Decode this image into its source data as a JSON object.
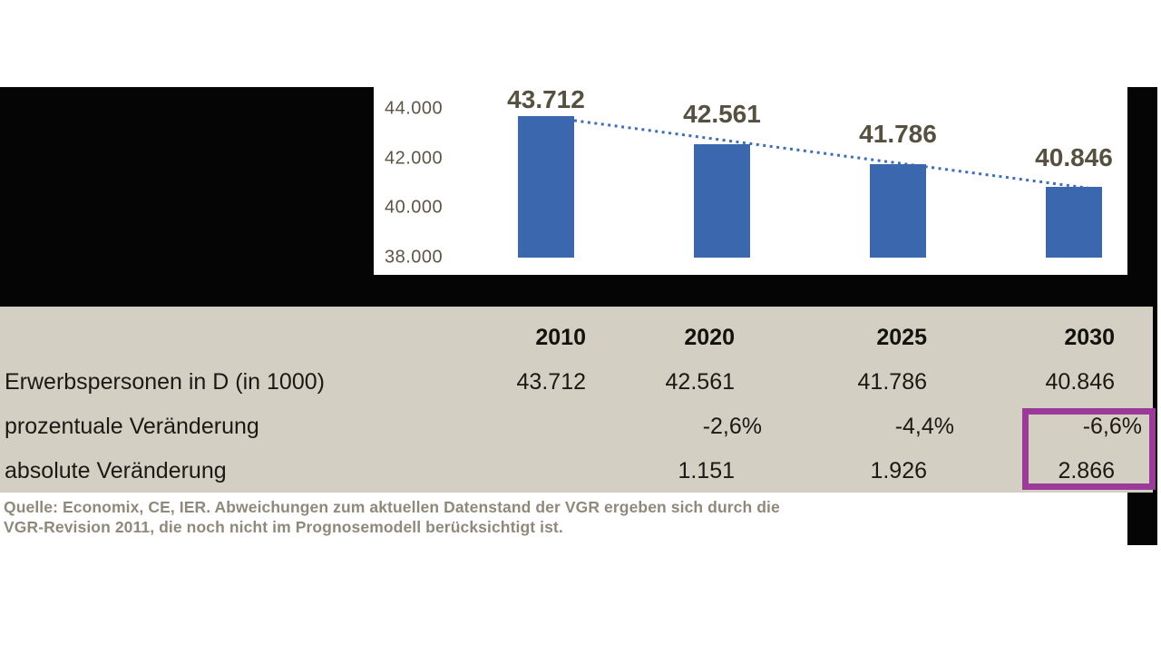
{
  "chart_data": {
    "type": "bar",
    "title": "",
    "xlabel": "",
    "ylabel": "",
    "categories": [
      "2010",
      "2020",
      "2025",
      "2030"
    ],
    "values": [
      43712,
      42561,
      41786,
      40846
    ],
    "value_labels": [
      "43.712",
      "42.561",
      "41.786",
      "40.846"
    ],
    "ylim": [
      38000,
      44500
    ],
    "yticks": [
      44000,
      42000,
      40000,
      38000
    ],
    "ytick_labels": [
      "44.000",
      "42.000",
      "40.000",
      "38.000"
    ],
    "grid": false,
    "legend": "none",
    "trendline": {
      "type": "dotted",
      "from_category": "2010",
      "to_category": "2030"
    },
    "bar_color": "#3b67ae",
    "trendline_color": "#3f6db8"
  },
  "table": {
    "header": [
      "",
      "2010",
      "2020",
      "2025",
      "2030"
    ],
    "rows": [
      {
        "label": "Erwerbspersonen in D (in 1000)",
        "values": [
          "43.712",
          "42.561",
          "41.786",
          "40.846"
        ]
      },
      {
        "label": "prozentuale Veränderung",
        "values": [
          "",
          "-2,6%",
          "-4,4%",
          "-6,6%"
        ]
      },
      {
        "label": "absolute Veränderung",
        "values": [
          "",
          "1.151",
          "1.926",
          "2.866"
        ]
      }
    ],
    "highlight": {
      "column": "2030",
      "rows": [
        "prozentuale Veränderung",
        "absolute Veränderung"
      ],
      "values": [
        "-6,6%",
        "2.866"
      ],
      "color": "#9c3a9a"
    }
  },
  "source_note": {
    "line1": "Quelle: Economix, CE, IER. Abweichungen zum aktuellen Datenstand der VGR ergeben sich durch die",
    "line2": "VGR-Revision 2011, die noch nicht im Prognosemodell berücksichtigt ist."
  },
  "colors": {
    "bar": "#3b67ae",
    "trendline": "#3f6db8",
    "table_background": "#d3cfc3",
    "highlight_border": "#9c3a9a",
    "chart_label_text": "#55503f",
    "axis_text": "#5c5547",
    "table_text": "#1b1913",
    "source_text": "#8f897b",
    "frame": "#050505"
  }
}
